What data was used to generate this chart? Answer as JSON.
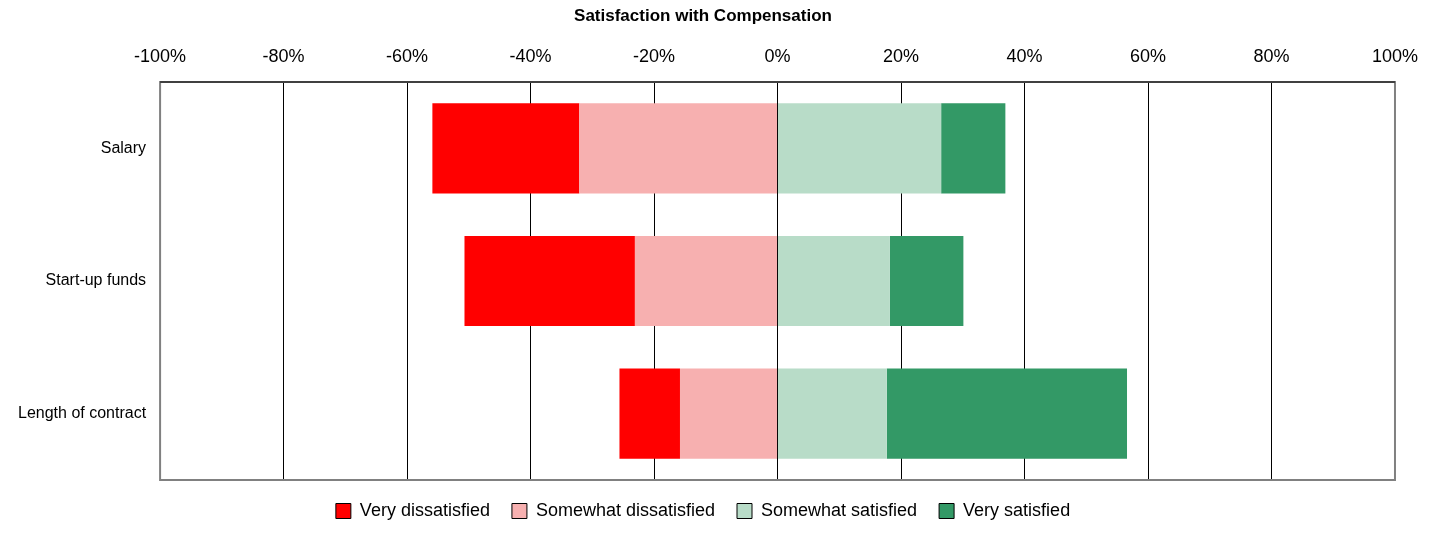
{
  "chart_data": {
    "type": "bar",
    "title": "Satisfaction with Compensation",
    "orientation": "horizontal",
    "stacked": true,
    "categories": [
      "Salary",
      "Start-up funds",
      "Length of contract"
    ],
    "series": [
      {
        "name": "Somewhat dissatisfied",
        "color": "#f7b0b0",
        "values": [
          -32.1,
          -23.1,
          -15.8
        ]
      },
      {
        "name": "Very dissatisfied",
        "color": "#ff0000",
        "values": [
          -23.8,
          -27.6,
          -9.8
        ]
      },
      {
        "name": "Somewhat satisfied",
        "color": "#b8dcc8",
        "values": [
          26.5,
          18.2,
          17.7
        ]
      },
      {
        "name": "Very satisfied",
        "color": "#339966",
        "values": [
          10.4,
          11.9,
          38.9
        ]
      }
    ],
    "xlim": [
      -100,
      100
    ],
    "xticks": [
      {
        "value": -100,
        "label": "-100%"
      },
      {
        "value": -80,
        "label": "-80%"
      },
      {
        "value": -60,
        "label": "-60%"
      },
      {
        "value": -40,
        "label": "-40%"
      },
      {
        "value": -20,
        "label": "-20%"
      },
      {
        "value": 0,
        "label": "0%"
      },
      {
        "value": 20,
        "label": "20%"
      },
      {
        "value": 40,
        "label": "40%"
      },
      {
        "value": 60,
        "label": "60%"
      },
      {
        "value": 80,
        "label": "80%"
      },
      {
        "value": 100,
        "label": "100%"
      }
    ],
    "grid": "x",
    "legend": "bottom"
  }
}
